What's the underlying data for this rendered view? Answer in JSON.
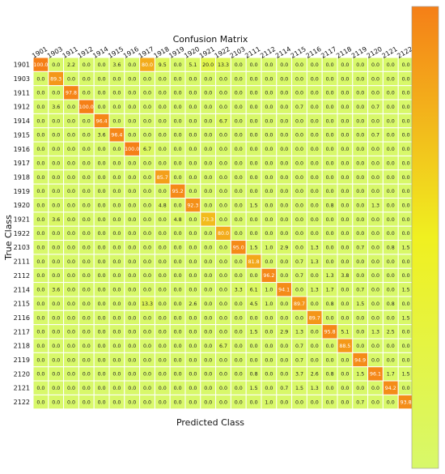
{
  "chart_data": {
    "type": "heatmap",
    "title": "Confusion Matrix",
    "xlabel": "Predicted Class",
    "ylabel": "True Class",
    "x_labels": [
      "1901",
      "1903",
      "1911",
      "1912",
      "1914",
      "1915",
      "1916",
      "1917",
      "1918",
      "1919",
      "1920",
      "1921",
      "1922",
      "2103",
      "2111",
      "2112",
      "2114",
      "2115",
      "2116",
      "2117",
      "2118",
      "2119",
      "2120",
      "2121",
      "2122"
    ],
    "y_labels": [
      "1901",
      "1903",
      "1911",
      "1912",
      "1914",
      "1915",
      "1916",
      "1917",
      "1918",
      "1919",
      "1920",
      "1921",
      "1922",
      "2103",
      "2111",
      "2112",
      "2114",
      "2115",
      "2116",
      "2117",
      "2118",
      "2119",
      "2120",
      "2121",
      "2122"
    ],
    "values": [
      [
        100.0,
        0.0,
        2.2,
        0.0,
        0.0,
        3.6,
        0.0,
        80.0,
        9.5,
        0.0,
        5.1,
        20.0,
        13.3,
        0.0,
        0.0,
        0.0,
        0.0,
        0.0,
        0.0,
        0.0,
        0.0,
        0.0,
        0.0,
        0.0,
        0.0
      ],
      [
        0.0,
        89.3,
        0.0,
        0.0,
        0.0,
        0.0,
        0.0,
        0.0,
        0.0,
        0.0,
        0.0,
        0.0,
        0.0,
        0.0,
        0.0,
        0.0,
        0.0,
        0.0,
        0.0,
        0.0,
        0.0,
        0.0,
        0.0,
        0.0,
        0.0
      ],
      [
        0.0,
        0.0,
        97.8,
        0.0,
        0.0,
        0.0,
        0.0,
        0.0,
        0.0,
        0.0,
        0.0,
        0.0,
        0.0,
        0.0,
        0.0,
        0.0,
        0.0,
        0.0,
        0.0,
        0.0,
        0.0,
        0.0,
        0.0,
        0.0,
        0.0
      ],
      [
        0.0,
        3.6,
        0.0,
        100.0,
        0.0,
        0.0,
        0.0,
        0.0,
        0.0,
        0.0,
        0.0,
        0.0,
        0.0,
        0.0,
        0.0,
        0.0,
        0.0,
        0.7,
        0.0,
        0.0,
        0.0,
        0.0,
        0.7,
        0.0,
        0.0
      ],
      [
        0.0,
        0.0,
        0.0,
        0.0,
        96.4,
        0.0,
        0.0,
        0.0,
        0.0,
        0.0,
        0.0,
        0.0,
        6.7,
        0.0,
        0.0,
        0.0,
        0.0,
        0.0,
        0.0,
        0.0,
        0.0,
        0.0,
        0.0,
        0.0,
        0.0
      ],
      [
        0.0,
        0.0,
        0.0,
        0.0,
        3.6,
        96.4,
        0.0,
        0.0,
        0.0,
        0.0,
        0.0,
        0.0,
        0.0,
        0.0,
        0.0,
        0.0,
        0.0,
        0.0,
        0.0,
        0.0,
        0.0,
        0.0,
        0.7,
        0.0,
        0.0
      ],
      [
        0.0,
        0.0,
        0.0,
        0.0,
        0.0,
        0.0,
        100.0,
        6.7,
        0.0,
        0.0,
        0.0,
        0.0,
        0.0,
        0.0,
        0.0,
        0.0,
        0.0,
        0.0,
        0.0,
        0.0,
        0.0,
        0.0,
        0.0,
        0.0,
        0.0
      ],
      [
        0.0,
        0.0,
        0.0,
        0.0,
        0.0,
        0.0,
        0.0,
        0.0,
        0.0,
        0.0,
        0.0,
        0.0,
        0.0,
        0.0,
        0.0,
        0.0,
        0.0,
        0.0,
        0.0,
        0.0,
        0.0,
        0.0,
        0.0,
        0.0,
        0.0
      ],
      [
        0.0,
        0.0,
        0.0,
        0.0,
        0.0,
        0.0,
        0.0,
        0.0,
        85.7,
        0.0,
        0.0,
        0.0,
        0.0,
        0.0,
        0.0,
        0.0,
        0.0,
        0.0,
        0.0,
        0.0,
        0.0,
        0.0,
        0.0,
        0.0,
        0.0
      ],
      [
        0.0,
        0.0,
        0.0,
        0.0,
        0.0,
        0.0,
        0.0,
        0.0,
        0.0,
        95.2,
        0.0,
        0.0,
        0.0,
        0.0,
        0.0,
        0.0,
        0.0,
        0.0,
        0.0,
        0.0,
        0.0,
        0.0,
        0.0,
        0.0,
        0.0
      ],
      [
        0.0,
        0.0,
        0.0,
        0.0,
        0.0,
        0.0,
        0.0,
        0.0,
        4.8,
        0.0,
        92.3,
        0.0,
        0.0,
        0.0,
        1.5,
        0.0,
        0.0,
        0.0,
        0.0,
        0.8,
        0.0,
        0.0,
        1.3,
        0.0,
        0.0
      ],
      [
        0.0,
        3.6,
        0.0,
        0.0,
        0.0,
        0.0,
        0.0,
        0.0,
        0.0,
        4.8,
        0.0,
        73.3,
        0.0,
        0.0,
        0.0,
        0.0,
        0.0,
        0.0,
        0.0,
        0.0,
        0.0,
        0.0,
        0.0,
        0.0,
        0.0
      ],
      [
        0.0,
        0.0,
        0.0,
        0.0,
        0.0,
        0.0,
        0.0,
        0.0,
        0.0,
        0.0,
        0.0,
        0.0,
        80.0,
        0.0,
        0.0,
        0.0,
        0.0,
        0.0,
        0.0,
        0.0,
        0.0,
        0.0,
        0.0,
        0.0,
        0.0
      ],
      [
        0.0,
        0.0,
        0.0,
        0.0,
        0.0,
        0.0,
        0.0,
        0.0,
        0.0,
        0.0,
        0.0,
        0.0,
        0.0,
        95.0,
        1.5,
        1.0,
        2.9,
        0.0,
        1.3,
        0.0,
        0.0,
        0.7,
        0.0,
        0.8,
        1.5
      ],
      [
        0.0,
        0.0,
        0.0,
        0.0,
        0.0,
        0.0,
        0.0,
        0.0,
        0.0,
        0.0,
        0.0,
        0.0,
        0.0,
        0.0,
        81.8,
        0.0,
        0.0,
        0.7,
        1.3,
        0.0,
        0.0,
        0.0,
        0.0,
        0.0,
        0.0
      ],
      [
        0.0,
        0.0,
        0.0,
        0.0,
        0.0,
        0.0,
        0.0,
        0.0,
        0.0,
        0.0,
        0.0,
        0.0,
        0.0,
        0.0,
        0.0,
        96.2,
        0.0,
        0.7,
        0.0,
        1.3,
        3.8,
        0.0,
        0.0,
        0.0,
        0.0
      ],
      [
        0.0,
        3.6,
        0.0,
        0.0,
        0.0,
        0.0,
        0.0,
        0.0,
        0.0,
        0.0,
        0.0,
        0.0,
        0.0,
        3.3,
        6.1,
        1.0,
        94.1,
        0.0,
        1.3,
        1.7,
        0.0,
        0.7,
        0.0,
        0.0,
        1.5
      ],
      [
        0.0,
        0.0,
        0.0,
        0.0,
        0.0,
        0.0,
        0.0,
        13.3,
        0.0,
        0.0,
        2.6,
        0.0,
        0.0,
        0.0,
        4.5,
        1.0,
        0.0,
        89.7,
        0.0,
        0.8,
        0.0,
        1.5,
        0.0,
        0.8,
        0.0
      ],
      [
        0.0,
        0.0,
        0.0,
        0.0,
        0.0,
        0.0,
        0.0,
        0.0,
        0.0,
        0.0,
        0.0,
        0.0,
        0.0,
        0.0,
        0.0,
        0.0,
        0.0,
        0.0,
        89.7,
        0.0,
        0.0,
        0.0,
        0.0,
        0.0,
        1.5
      ],
      [
        0.0,
        0.0,
        0.0,
        0.0,
        0.0,
        0.0,
        0.0,
        0.0,
        0.0,
        0.0,
        0.0,
        0.0,
        0.0,
        0.0,
        1.5,
        0.0,
        2.9,
        1.3,
        0.0,
        95.8,
        5.1,
        0.0,
        1.3,
        2.5,
        0.0
      ],
      [
        0.0,
        0.0,
        0.0,
        0.0,
        0.0,
        0.0,
        0.0,
        0.0,
        0.0,
        0.0,
        0.0,
        0.0,
        6.7,
        0.0,
        0.0,
        0.0,
        0.0,
        0.7,
        0.0,
        0.0,
        88.5,
        0.0,
        0.0,
        0.0,
        0.0
      ],
      [
        0.0,
        0.0,
        0.0,
        0.0,
        0.0,
        0.0,
        0.0,
        0.0,
        0.0,
        0.0,
        0.0,
        0.0,
        0.0,
        0.0,
        0.0,
        0.0,
        0.0,
        0.7,
        0.0,
        0.0,
        0.0,
        94.9,
        0.0,
        0.0,
        0.0
      ],
      [
        0.0,
        0.0,
        0.0,
        0.0,
        0.0,
        0.0,
        0.0,
        0.0,
        0.0,
        0.0,
        0.0,
        0.0,
        0.0,
        0.0,
        0.8,
        0.0,
        0.0,
        3.7,
        2.6,
        0.8,
        0.0,
        1.5,
        96.1,
        1.7,
        1.5
      ],
      [
        0.0,
        0.0,
        0.0,
        0.0,
        0.0,
        0.0,
        0.0,
        0.0,
        0.0,
        0.0,
        0.0,
        0.0,
        0.0,
        0.0,
        1.5,
        0.0,
        0.7,
        1.5,
        1.3,
        0.0,
        0.0,
        0.0,
        0.0,
        94.2,
        0.0
      ],
      [
        0.0,
        0.0,
        0.0,
        0.0,
        0.0,
        0.0,
        0.0,
        0.0,
        0.0,
        0.0,
        0.0,
        0.0,
        0.0,
        0.0,
        0.0,
        1.0,
        0.0,
        0.0,
        0.0,
        0.0,
        0.0,
        0.7,
        0.0,
        0.0,
        93.8
      ]
    ],
    "value_range": [
      0,
      100
    ],
    "colorbar": {
      "position": "right",
      "colors": {
        "low": "#d8f86a",
        "mid": "#f0f020",
        "high": "#f57f17"
      }
    },
    "grid": true
  }
}
